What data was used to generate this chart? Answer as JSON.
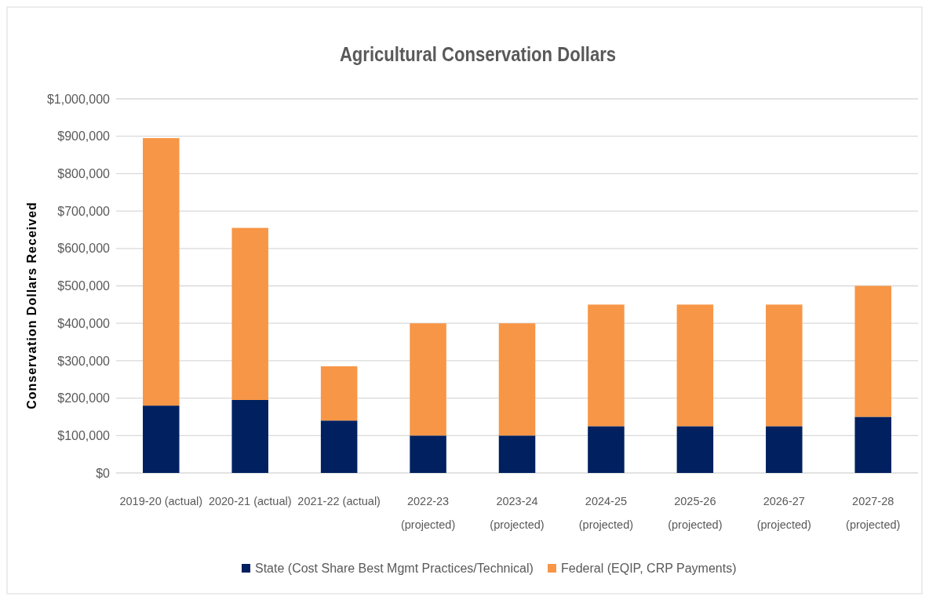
{
  "chart_data": {
    "type": "bar",
    "title": "Agricultural Conservation Dollars",
    "ylabel": "Conservation Dollars Received",
    "categories": [
      "2019-20 (actual)",
      "2020-21 (actual)",
      "2021-22 (actual)",
      "2022-23\n(projected)",
      "2023-24\n(projected)",
      "2024-25\n(projected)",
      "2025-26\n(projected)",
      "2026-27\n(projected)",
      "2027-28\n(projected)"
    ],
    "series": [
      {
        "name": "State (Cost Share Best Mgmt Practices/Technical)",
        "color": "#002060",
        "values": [
          180000,
          195000,
          140000,
          100000,
          100000,
          125000,
          125000,
          125000,
          150000
        ]
      },
      {
        "name": "Federal (EQIP, CRP Payments)",
        "color": "#f79646",
        "values": [
          715000,
          460000,
          145000,
          300000,
          300000,
          325000,
          325000,
          325000,
          350000
        ]
      }
    ],
    "stacked": true,
    "ylim": [
      0,
      1000000
    ],
    "yticks": [
      {
        "value": 0,
        "label": "$0"
      },
      {
        "value": 100000,
        "label": "$100,000"
      },
      {
        "value": 200000,
        "label": "$200,000"
      },
      {
        "value": 300000,
        "label": "$300,000"
      },
      {
        "value": 400000,
        "label": "$400,000"
      },
      {
        "value": 500000,
        "label": "$500,000"
      },
      {
        "value": 600000,
        "label": "$600,000"
      },
      {
        "value": 700000,
        "label": "$700,000"
      },
      {
        "value": 800000,
        "label": "$800,000"
      },
      {
        "value": 900000,
        "label": "$900,000"
      },
      {
        "value": 1000000,
        "label": "$1,000,000"
      }
    ],
    "grid": "y",
    "legend": "bottom"
  }
}
